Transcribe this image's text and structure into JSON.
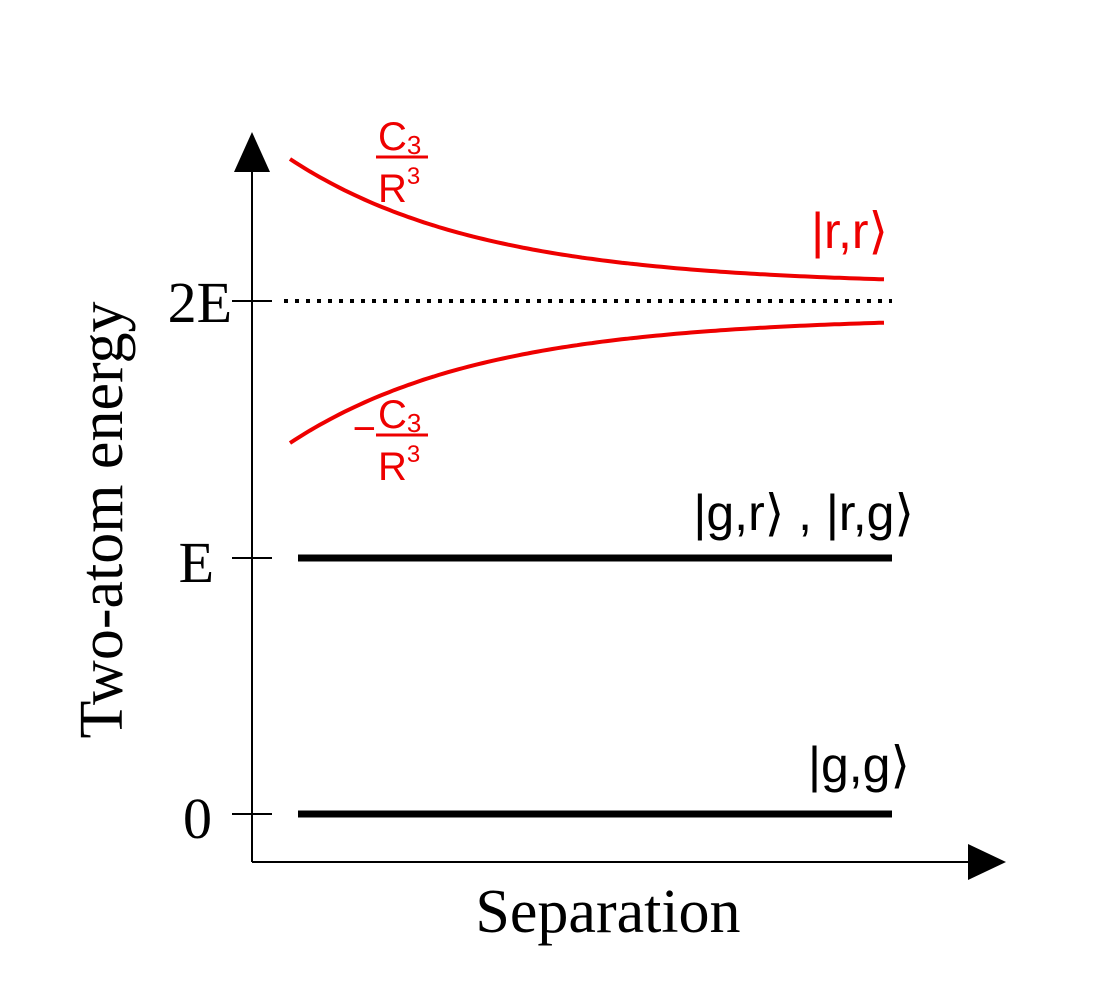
{
  "axes": {
    "y_label": "Two-atom energy",
    "x_label": "Separation",
    "y_ticks": [
      "0",
      "E",
      "2E"
    ]
  },
  "levels": {
    "ground": "|g,g⟩",
    "single": "|g,r⟩ , |r,g⟩",
    "double": "|r,r⟩"
  },
  "interaction": {
    "upper_sign": "",
    "lower_sign": "−",
    "numerator": "C",
    "numerator_sub": "3",
    "denominator": "R",
    "denominator_sup": "3"
  },
  "colors": {
    "axis": "#000000",
    "levels": "#000000",
    "interaction": "#ee0000"
  }
}
